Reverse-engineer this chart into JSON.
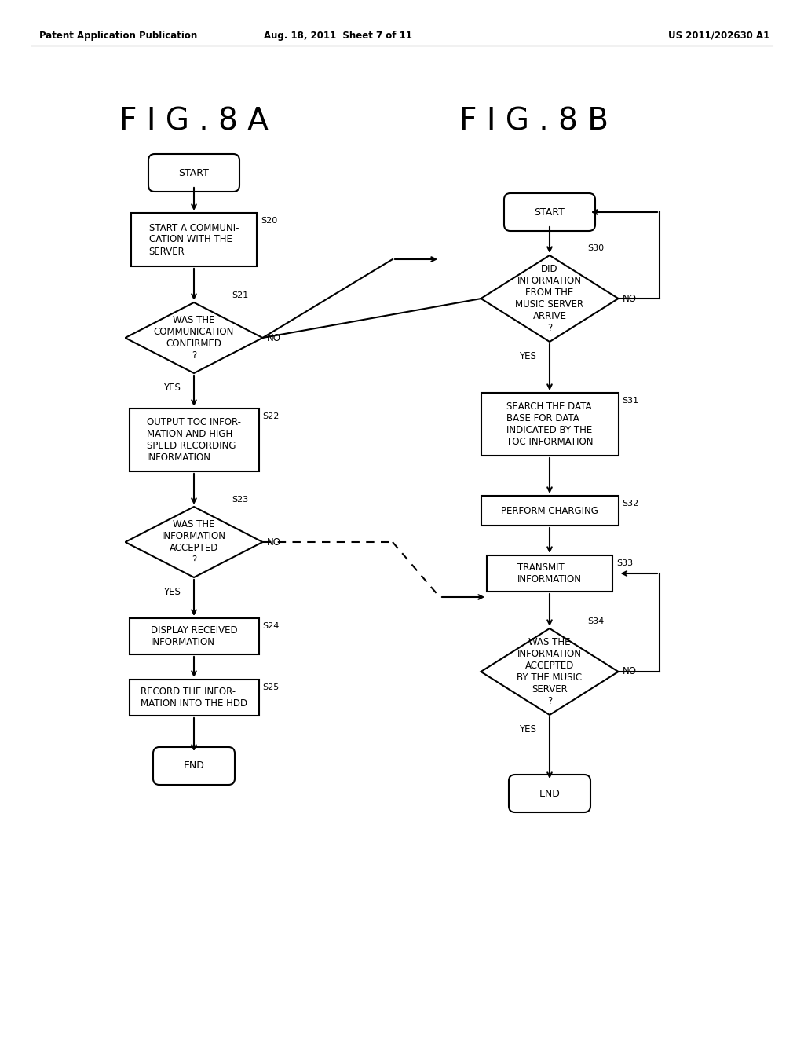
{
  "bg_color": "#ffffff",
  "header_left": "Patent Application Publication",
  "header_mid": "Aug. 18, 2011  Sheet 7 of 11",
  "header_right": "US 2011/202630 A1",
  "fig_label_a": "F I G . 8 A",
  "fig_label_b": "F I G . 8 B"
}
